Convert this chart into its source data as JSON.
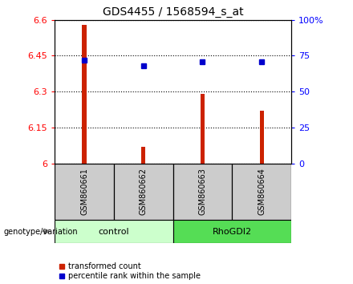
{
  "title": "GDS4455 / 1568594_s_at",
  "samples": [
    "GSM860661",
    "GSM860662",
    "GSM860663",
    "GSM860664"
  ],
  "groups": [
    "control",
    "control",
    "RhoGDI2",
    "RhoGDI2"
  ],
  "red_values": [
    6.58,
    6.07,
    6.29,
    6.22
  ],
  "blue_values": [
    72,
    68,
    71,
    71
  ],
  "ylim_left": [
    6.0,
    6.6
  ],
  "ylim_right": [
    0,
    100
  ],
  "yticks_left": [
    6.0,
    6.15,
    6.3,
    6.45,
    6.6
  ],
  "yticks_right": [
    0,
    25,
    50,
    75,
    100
  ],
  "ytick_labels_left": [
    "6",
    "6.15",
    "6.3",
    "6.45",
    "6.6"
  ],
  "ytick_labels_right": [
    "0",
    "25",
    "50",
    "75",
    "100%"
  ],
  "bar_color": "#CC2200",
  "dot_color": "#0000CC",
  "plot_bg": "#ffffff",
  "sample_box_color": "#cccccc",
  "control_color_light": "#ccffcc",
  "rhodgi2_color_dark": "#55dd55",
  "genotype_label": "genotype/variation",
  "legend_red": "transformed count",
  "legend_blue": "percentile rank within the sample"
}
